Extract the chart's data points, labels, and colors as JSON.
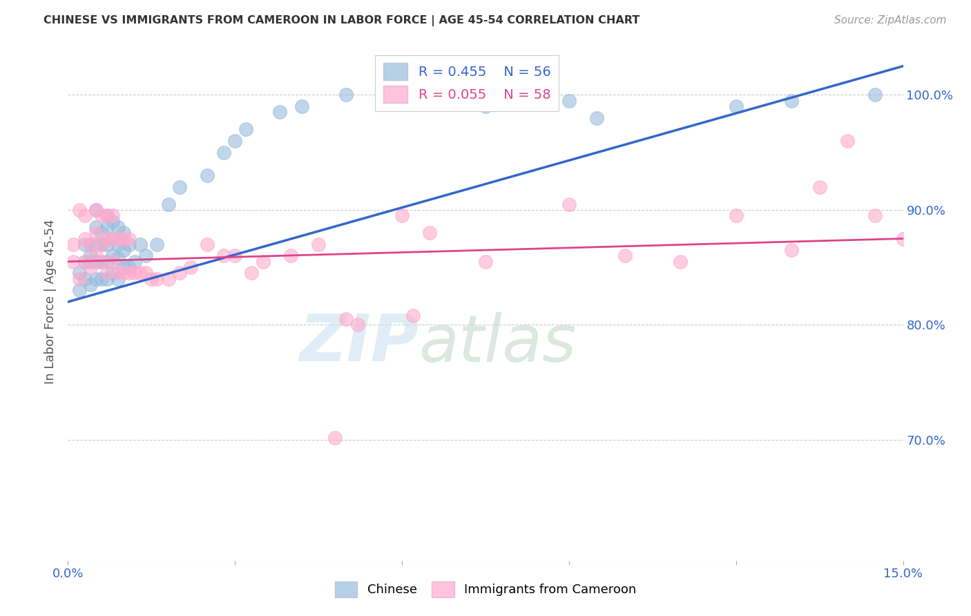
{
  "title": "CHINESE VS IMMIGRANTS FROM CAMEROON IN LABOR FORCE | AGE 45-54 CORRELATION CHART",
  "source": "Source: ZipAtlas.com",
  "ylabel": "In Labor Force | Age 45-54",
  "x_min": 0.0,
  "x_max": 0.15,
  "y_min": 0.595,
  "y_max": 1.045,
  "x_ticks": [
    0.0,
    0.03,
    0.06,
    0.09,
    0.12,
    0.15
  ],
  "x_tick_labels": [
    "0.0%",
    "",
    "",
    "",
    "",
    "15.0%"
  ],
  "y_ticks": [
    0.7,
    0.8,
    0.9,
    1.0
  ],
  "y_tick_labels": [
    "70.0%",
    "80.0%",
    "90.0%",
    "100.0%"
  ],
  "chinese_color": "#99bbdd",
  "cameroon_color": "#ffaacc",
  "chinese_line_color": "#3366cc",
  "cameroon_line_color": "#dd4488",
  "legend_R_chinese": "R = 0.455",
  "legend_N_chinese": "N = 56",
  "legend_R_cameroon": "R = 0.055",
  "legend_N_cameroon": "N = 58",
  "watermark_zip": "ZIP",
  "watermark_atlas": "atlas",
  "chinese_x": [
    0.002,
    0.002,
    0.003,
    0.003,
    0.003,
    0.004,
    0.004,
    0.004,
    0.004,
    0.005,
    0.005,
    0.005,
    0.005,
    0.005,
    0.006,
    0.006,
    0.006,
    0.006,
    0.007,
    0.007,
    0.007,
    0.007,
    0.007,
    0.008,
    0.008,
    0.008,
    0.008,
    0.009,
    0.009,
    0.009,
    0.009,
    0.01,
    0.01,
    0.01,
    0.011,
    0.011,
    0.012,
    0.013,
    0.014,
    0.016,
    0.018,
    0.02,
    0.025,
    0.028,
    0.03,
    0.032,
    0.038,
    0.042,
    0.05,
    0.06,
    0.075,
    0.09,
    0.095,
    0.12,
    0.13,
    0.145
  ],
  "chinese_y": [
    0.845,
    0.83,
    0.87,
    0.84,
    0.855,
    0.835,
    0.86,
    0.855,
    0.87,
    0.84,
    0.855,
    0.87,
    0.885,
    0.9,
    0.84,
    0.855,
    0.87,
    0.88,
    0.84,
    0.855,
    0.87,
    0.885,
    0.895,
    0.845,
    0.86,
    0.875,
    0.89,
    0.84,
    0.858,
    0.87,
    0.885,
    0.85,
    0.865,
    0.88,
    0.85,
    0.87,
    0.855,
    0.87,
    0.86,
    0.87,
    0.905,
    0.92,
    0.93,
    0.95,
    0.96,
    0.97,
    0.985,
    0.99,
    1.0,
    1.0,
    0.99,
    0.995,
    0.98,
    0.99,
    0.995,
    1.0
  ],
  "cameroon_x": [
    0.001,
    0.001,
    0.002,
    0.002,
    0.003,
    0.003,
    0.003,
    0.004,
    0.004,
    0.005,
    0.005,
    0.005,
    0.006,
    0.006,
    0.006,
    0.007,
    0.007,
    0.007,
    0.008,
    0.008,
    0.008,
    0.009,
    0.009,
    0.01,
    0.01,
    0.011,
    0.011,
    0.012,
    0.013,
    0.014,
    0.015,
    0.016,
    0.018,
    0.02,
    0.022,
    0.025,
    0.028,
    0.03,
    0.033,
    0.035,
    0.04,
    0.045,
    0.05,
    0.052,
    0.06,
    0.065,
    0.075,
    0.09,
    0.1,
    0.11,
    0.12,
    0.13,
    0.135,
    0.14,
    0.145,
    0.15,
    0.048,
    0.062
  ],
  "cameroon_y": [
    0.855,
    0.87,
    0.84,
    0.9,
    0.855,
    0.875,
    0.895,
    0.85,
    0.87,
    0.86,
    0.88,
    0.9,
    0.855,
    0.87,
    0.895,
    0.845,
    0.875,
    0.895,
    0.855,
    0.875,
    0.895,
    0.845,
    0.875,
    0.845,
    0.875,
    0.845,
    0.875,
    0.845,
    0.845,
    0.845,
    0.84,
    0.84,
    0.84,
    0.845,
    0.85,
    0.87,
    0.86,
    0.86,
    0.845,
    0.855,
    0.86,
    0.87,
    0.805,
    0.8,
    0.895,
    0.88,
    0.855,
    0.905,
    0.86,
    0.855,
    0.895,
    0.865,
    0.92,
    0.96,
    0.895,
    0.875,
    0.702,
    0.808
  ]
}
